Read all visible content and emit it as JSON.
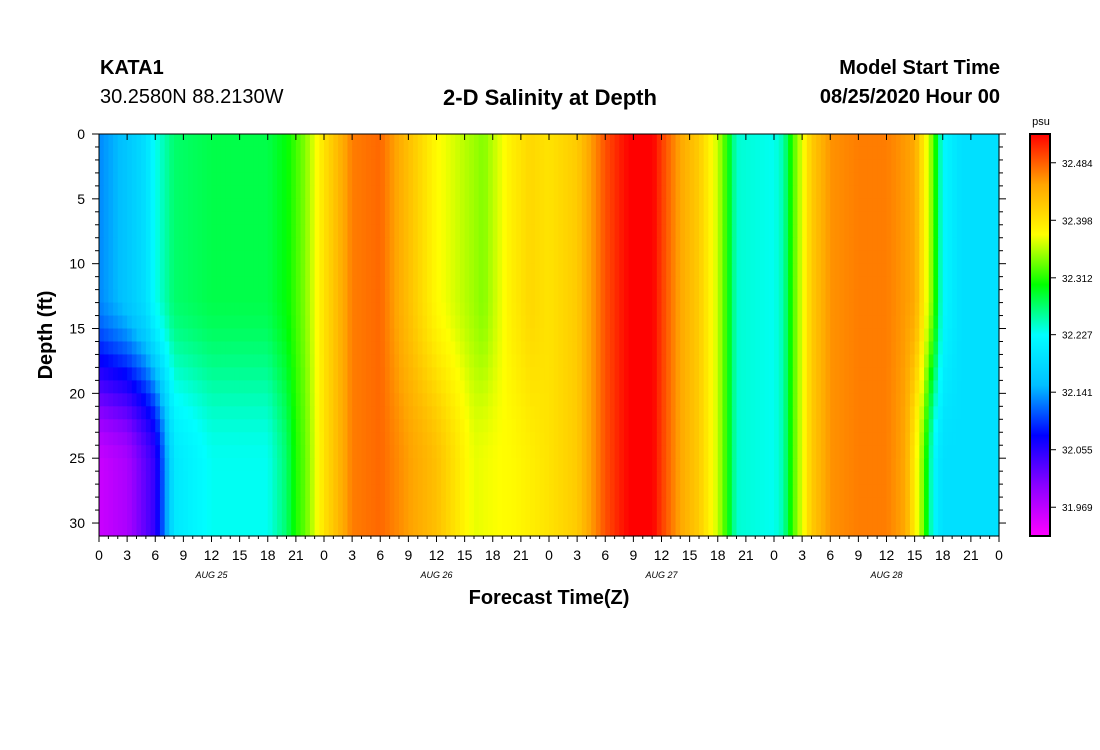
{
  "header": {
    "station_id": "KATA1",
    "location": "30.2580N 88.2130W",
    "start_label": "Model Start Time",
    "start_value": "08/25/2020 Hour 00"
  },
  "chart_data": {
    "type": "heatmap",
    "title": "2-D Salinity at Depth",
    "xlabel": "Forecast Time(Z)",
    "ylabel": "Depth (ft)",
    "x_hours_range": [
      0,
      96
    ],
    "x_tick_labels": [
      "0",
      "3",
      "6",
      "9",
      "12",
      "15",
      "18",
      "21",
      "0",
      "3",
      "6",
      "9",
      "12",
      "15",
      "18",
      "21",
      "0",
      "3",
      "6",
      "9",
      "12",
      "15",
      "18",
      "21",
      "0",
      "3",
      "6",
      "9",
      "12",
      "15",
      "18",
      "21",
      "0"
    ],
    "date_labels": [
      {
        "hour": 12,
        "text": "AUG 25"
      },
      {
        "hour": 36,
        "text": "AUG 26"
      },
      {
        "hour": 60,
        "text": "AUG 27"
      },
      {
        "hour": 84,
        "text": "AUG 28"
      }
    ],
    "y_range": [
      0,
      31
    ],
    "y_ticks": [
      0,
      5,
      10,
      15,
      20,
      25,
      30
    ],
    "colorbar": {
      "unit": "psu",
      "range": [
        31.926,
        32.527
      ],
      "tick_values": [
        32.484,
        32.398,
        32.312,
        32.227,
        32.141,
        32.055,
        31.969
      ],
      "tick_labels": [
        "32.484",
        "32.398",
        "32.312",
        "32.227",
        "32.141",
        "32.055",
        "31.969"
      ],
      "colors": [
        "#ff00ff",
        "#8b00ff",
        "#0000ff",
        "#00bfff",
        "#00ffff",
        "#00ff00",
        "#ffff00",
        "#ffa500",
        "#ff0000"
      ]
    },
    "surface_salinity": {
      "hours": [
        0,
        3,
        5,
        6,
        8,
        12,
        18,
        20,
        22,
        24,
        27,
        30,
        36,
        41,
        44,
        46,
        48,
        51,
        54,
        56,
        57,
        59,
        60,
        62,
        64,
        66,
        67,
        68,
        72,
        73,
        74,
        76,
        78,
        81,
        84,
        87,
        88,
        89,
        90,
        92,
        96
      ],
      "values": [
        32.13,
        32.16,
        32.19,
        32.23,
        32.27,
        32.28,
        32.28,
        32.3,
        32.34,
        32.4,
        32.47,
        32.48,
        32.38,
        32.34,
        32.39,
        32.41,
        32.4,
        32.42,
        32.49,
        32.52,
        32.53,
        32.53,
        32.5,
        32.45,
        32.42,
        32.36,
        32.31,
        32.24,
        32.23,
        32.25,
        32.32,
        32.42,
        32.46,
        32.47,
        32.47,
        32.45,
        32.39,
        32.33,
        32.22,
        32.19,
        32.19
      ]
    },
    "bottom_salinity": {
      "hours": [
        0,
        3,
        6,
        8,
        12,
        18,
        20,
        21,
        22,
        24,
        27,
        30,
        36,
        40,
        44,
        48,
        51,
        54,
        56,
        57,
        59,
        60,
        62,
        64,
        66,
        67,
        68,
        72,
        73,
        74,
        76,
        78,
        81,
        84,
        86,
        87,
        88,
        89,
        90,
        92,
        96
      ],
      "values": [
        31.96,
        31.98,
        32.05,
        32.2,
        32.23,
        32.23,
        32.27,
        32.31,
        32.33,
        32.4,
        32.47,
        32.48,
        32.43,
        32.37,
        32.38,
        32.4,
        32.42,
        32.49,
        32.52,
        32.53,
        32.53,
        32.5,
        32.45,
        32.42,
        32.36,
        32.31,
        32.24,
        32.23,
        32.25,
        32.32,
        32.42,
        32.46,
        32.47,
        32.47,
        32.45,
        32.39,
        32.33,
        32.22,
        32.19,
        32.19,
        32.19
      ]
    },
    "grid": false
  }
}
